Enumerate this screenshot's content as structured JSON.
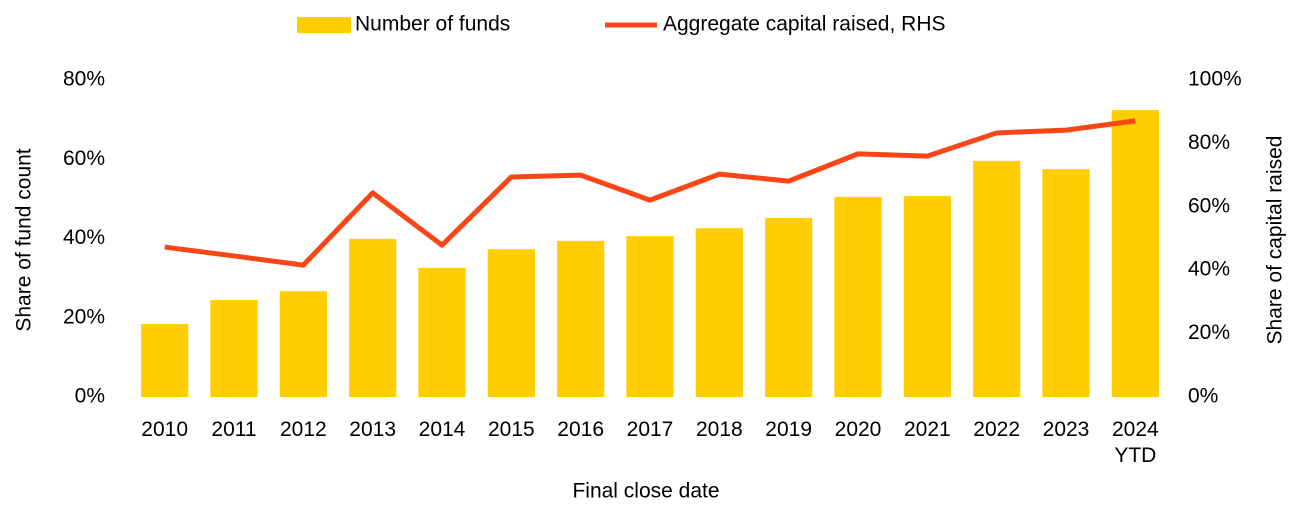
{
  "chart_data": {
    "type": "bar",
    "xlabel": "Final close date",
    "ylabel": "Share of fund count",
    "y2label": "Share of capital raised",
    "categories": [
      "2010",
      "2011",
      "2012",
      "2013",
      "2014",
      "2015",
      "2016",
      "2017",
      "2018",
      "2019",
      "2020",
      "2021",
      "2022",
      "2023",
      "2024 YTD"
    ],
    "series": [
      {
        "name": "Number of funds",
        "type": "bar",
        "color": "#ffcd00",
        "axis": "y",
        "values": [
          18.4,
          24.5,
          26.7,
          39.9,
          32.6,
          37.3,
          39.4,
          40.6,
          42.6,
          45.2,
          50.5,
          50.7,
          59.6,
          57.5,
          72.4
        ]
      },
      {
        "name": "Aggregate capital raised, RHS",
        "type": "line",
        "color": "#fa4616",
        "axis": "y2",
        "values": [
          47.3,
          44.5,
          41.6,
          64.4,
          47.9,
          69.4,
          70.0,
          62.1,
          70.3,
          68.1,
          76.7,
          76.0,
          83.3,
          84.2,
          87.1
        ]
      }
    ],
    "ylim": [
      0,
      80
    ],
    "yticks": [
      {
        "value": 0,
        "label": "0%"
      },
      {
        "value": 20,
        "label": "20%"
      },
      {
        "value": 40,
        "label": "40%"
      },
      {
        "value": 60,
        "label": "60%"
      },
      {
        "value": 80,
        "label": "80%"
      }
    ],
    "y2lim": [
      0,
      100
    ],
    "y2ticks": [
      {
        "value": 0,
        "label": "0%"
      },
      {
        "value": 20,
        "label": "20%"
      },
      {
        "value": 40,
        "label": "40%"
      },
      {
        "value": 60,
        "label": "60%"
      },
      {
        "value": 80,
        "label": "80%"
      },
      {
        "value": 100,
        "label": "100%"
      }
    ],
    "grid": false,
    "legend": "top"
  }
}
